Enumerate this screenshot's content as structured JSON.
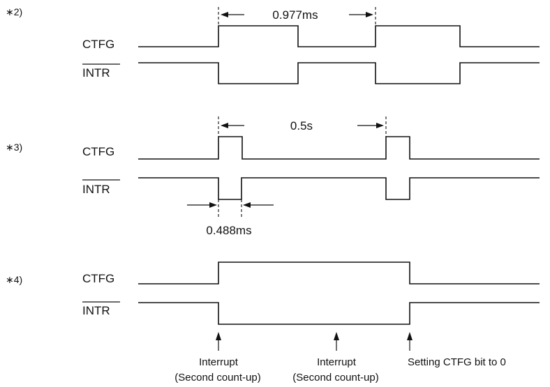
{
  "diagrams": [
    {
      "marker": "∗2)",
      "signal_top": "CTFG",
      "signal_bottom": "INTR",
      "measure": "0.977ms"
    },
    {
      "marker": "∗3)",
      "signal_top": "CTFG",
      "signal_bottom": "INTR",
      "measure": "0.5s",
      "pulse_measure": "0.488ms"
    },
    {
      "marker": "∗4)",
      "signal_top": "CTFG",
      "signal_bottom": "INTR",
      "annotations": [
        {
          "line1": "Interrupt",
          "line2": "(Second count-up)"
        },
        {
          "line1": "Interrupt",
          "line2": "(Second count-up)"
        },
        {
          "line1": "Setting CTFG bit to 0",
          "line2": ""
        }
      ]
    }
  ]
}
